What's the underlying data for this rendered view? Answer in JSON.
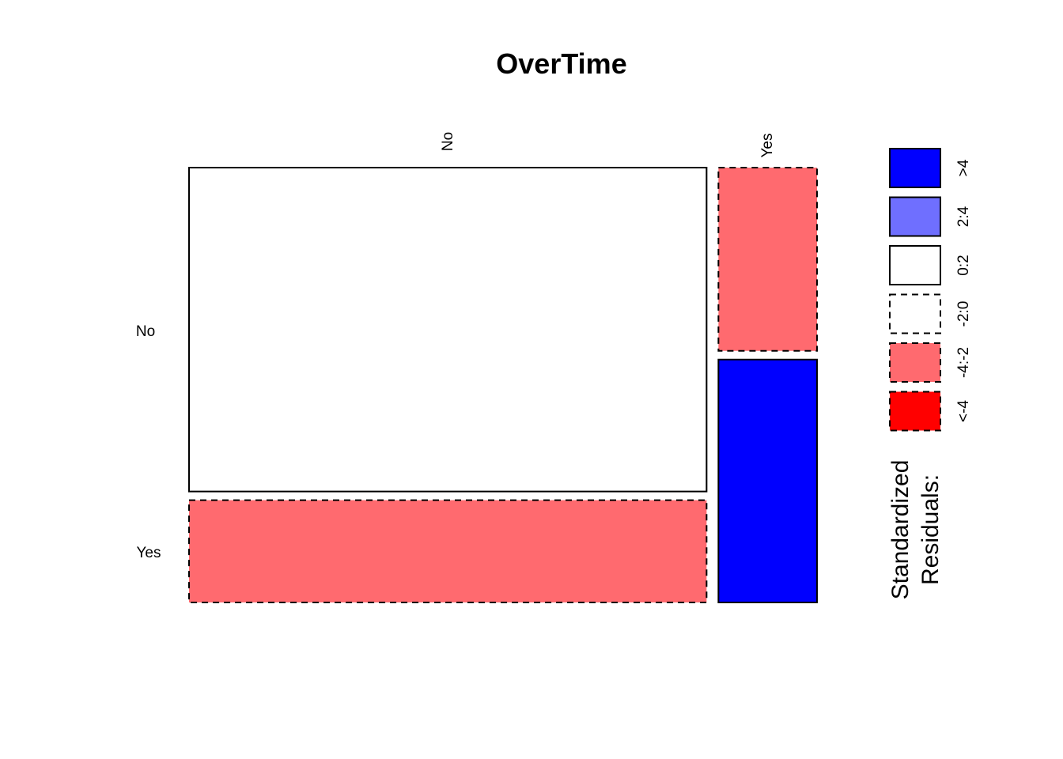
{
  "chart_data": {
    "type": "mosaic",
    "title": "OverTime",
    "column_variable_levels": [
      "No",
      "Yes"
    ],
    "row_variable_levels": [
      "No",
      "Yes"
    ],
    "column_proportions": [
      0.84,
      0.16
    ],
    "row_proportions_within_column": [
      [
        0.76,
        0.24
      ],
      [
        0.43,
        0.57
      ]
    ],
    "cells": [
      {
        "col": "No",
        "row": "No",
        "residual_class": "0:2"
      },
      {
        "col": "No",
        "row": "Yes",
        "residual_class": "-4:-2"
      },
      {
        "col": "Yes",
        "row": "No",
        "residual_class": "-4:-2"
      },
      {
        "col": "Yes",
        "row": "Yes",
        "residual_class": ">4"
      }
    ],
    "legend": {
      "title_lines": [
        "Standardized",
        "Residuals:"
      ],
      "placement": "right",
      "entries": [
        {
          "label": ">4",
          "color": "#0000ff",
          "dashed": false
        },
        {
          "label": "2:4",
          "color": "#6f6fff",
          "dashed": false
        },
        {
          "label": "0:2",
          "color": "#ffffff",
          "dashed": false
        },
        {
          "label": "-2:0",
          "color": "#ffffff",
          "dashed": true
        },
        {
          "label": "-4:-2",
          "color": "#ff6a6f",
          "dashed": true
        },
        {
          "label": "<-4",
          "color": "#ff0000",
          "dashed": true
        }
      ]
    }
  }
}
